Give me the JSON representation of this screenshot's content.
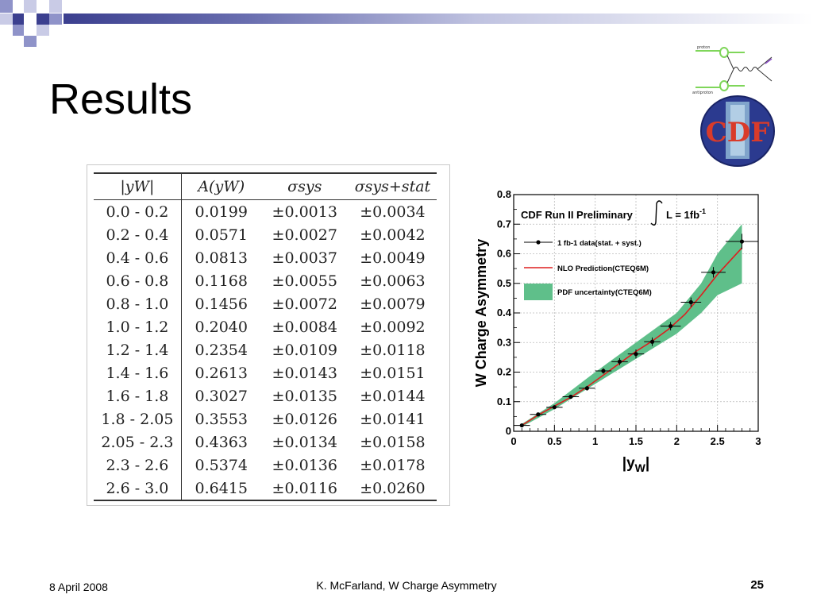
{
  "slide": {
    "title": "Results",
    "footer_date": "8 April 2008",
    "footer_center": "K. McFarland, W Charge Asymmetry",
    "page_number": "25",
    "logo_text": "CDF"
  },
  "table": {
    "headers": [
      "|yW|",
      "A(yW)",
      "σsys",
      "σsys+stat"
    ],
    "rows": [
      [
        "0.0 - 0.2",
        "0.0199",
        "±0.0013",
        "±0.0034"
      ],
      [
        "0.2 - 0.4",
        "0.0571",
        "±0.0027",
        "±0.0042"
      ],
      [
        "0.4 - 0.6",
        "0.0813",
        "±0.0037",
        "±0.0049"
      ],
      [
        "0.6 - 0.8",
        "0.1168",
        "±0.0055",
        "±0.0063"
      ],
      [
        "0.8 - 1.0",
        "0.1456",
        "±0.0072",
        "±0.0079"
      ],
      [
        "1.0 - 1.2",
        "0.2040",
        "±0.0084",
        "±0.0092"
      ],
      [
        "1.2 - 1.4",
        "0.2354",
        "±0.0109",
        "±0.0118"
      ],
      [
        "1.4 - 1.6",
        "0.2613",
        "±0.0143",
        "±0.0151"
      ],
      [
        "1.6 - 1.8",
        "0.3027",
        "±0.0135",
        "±0.0144"
      ],
      [
        "1.8 - 2.05",
        "0.3553",
        "±0.0126",
        "±0.0141"
      ],
      [
        "2.05 - 2.3",
        "0.4363",
        "±0.0134",
        "±0.0158"
      ],
      [
        "2.3 - 2.6",
        "0.5374",
        "±0.0136",
        "±0.0178"
      ],
      [
        "2.6 - 3.0",
        "0.6415",
        "±0.0116",
        "±0.0260"
      ]
    ]
  },
  "chart_data": {
    "type": "scatter",
    "title": "CDF Run II Preliminary",
    "lumi_label": "L = 1fb",
    "lumi_exp": "-1",
    "xlabel": "|y",
    "xlabel_sub": "W",
    "xlabel_end": "|",
    "ylabel": "W Charge Asymmetry",
    "xlim": [
      0,
      3
    ],
    "ylim": [
      0,
      0.8
    ],
    "xticks": [
      "0",
      "0.5",
      "1",
      "1.5",
      "2",
      "2.5",
      "3"
    ],
    "yticks": [
      "0",
      "0.1",
      "0.2",
      "0.3",
      "0.4",
      "0.5",
      "0.6",
      "0.7",
      "0.8"
    ],
    "grid": true,
    "legend_position": "top-left",
    "legend": [
      {
        "label": "1 fb-1 data(stat. + syst.)",
        "kind": "points"
      },
      {
        "label": "NLO Prediction(CTEQ6M)",
        "kind": "line"
      },
      {
        "label": "PDF uncertainty(CTEQ6M)",
        "kind": "band"
      }
    ],
    "colors": {
      "data": "#000000",
      "prediction": "#dd1f1f",
      "band": "#5fbf8a"
    },
    "series": [
      {
        "name": "1 fb-1 data(stat. + syst.)",
        "x": [
          0.1,
          0.3,
          0.5,
          0.7,
          0.9,
          1.1,
          1.3,
          1.5,
          1.7,
          1.925,
          2.175,
          2.45,
          2.8
        ],
        "xerr": [
          0.1,
          0.1,
          0.1,
          0.1,
          0.1,
          0.1,
          0.1,
          0.1,
          0.1,
          0.125,
          0.125,
          0.15,
          0.2
        ],
        "y": [
          0.0199,
          0.0571,
          0.0813,
          0.1168,
          0.1456,
          0.204,
          0.2354,
          0.2613,
          0.3027,
          0.3553,
          0.4363,
          0.5374,
          0.6415
        ],
        "yerr": [
          0.0034,
          0.0042,
          0.0049,
          0.0063,
          0.0079,
          0.0092,
          0.0118,
          0.0151,
          0.0144,
          0.0141,
          0.0158,
          0.0178,
          0.026
        ]
      },
      {
        "name": "NLO Prediction(CTEQ6M)",
        "x": [
          0.1,
          0.3,
          0.5,
          0.7,
          0.9,
          1.1,
          1.3,
          1.5,
          1.7,
          1.9,
          2.1,
          2.3,
          2.5,
          2.8
        ],
        "y": [
          0.02,
          0.055,
          0.085,
          0.115,
          0.15,
          0.19,
          0.23,
          0.27,
          0.305,
          0.345,
          0.395,
          0.46,
          0.53,
          0.62
        ]
      },
      {
        "name": "PDF uncertainty(CTEQ6M)",
        "x": [
          0.1,
          0.5,
          1.0,
          1.5,
          2.0,
          2.3,
          2.5,
          2.8
        ],
        "low": [
          0.015,
          0.075,
          0.16,
          0.245,
          0.33,
          0.4,
          0.46,
          0.5
        ],
        "high": [
          0.025,
          0.095,
          0.2,
          0.3,
          0.4,
          0.5,
          0.6,
          0.7
        ]
      }
    ]
  }
}
